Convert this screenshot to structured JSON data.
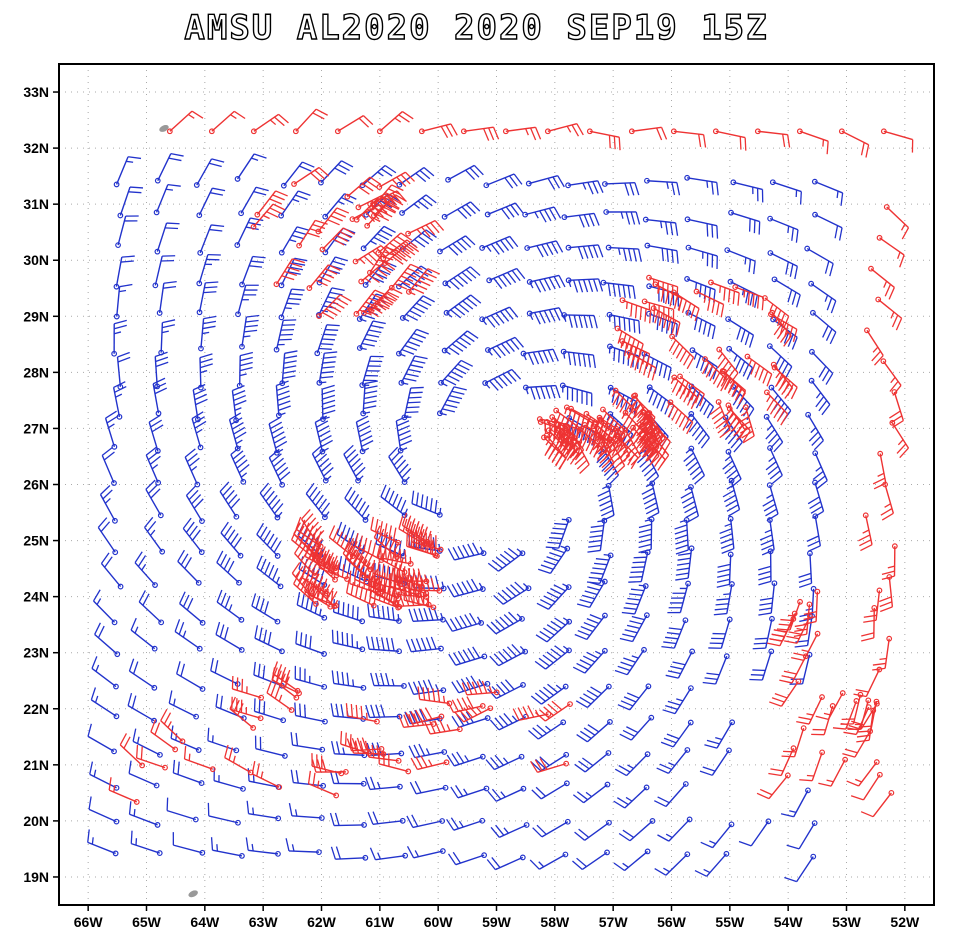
{
  "chart_data": {
    "type": "wind-barb",
    "title": "AMSU AL2020 2020 SEP19 15Z",
    "lon_range": [
      -66.5,
      -51.5
    ],
    "lat_range": [
      18.5,
      33.5
    ],
    "x_tick_labels": [
      "66W",
      "65W",
      "64W",
      "63W",
      "62W",
      "61W",
      "60W",
      "59W",
      "58W",
      "57W",
      "56W",
      "55W",
      "54W",
      "53W",
      "52W"
    ],
    "y_tick_labels": [
      "33N",
      "32N",
      "31N",
      "30N",
      "29N",
      "28N",
      "27N",
      "26N",
      "25N",
      "24N",
      "23N",
      "22N",
      "21N",
      "20N",
      "19N"
    ],
    "grid": true,
    "storm_center": {
      "lon": -59.0,
      "lat": 26.3
    },
    "series": [
      {
        "color": "#2233cc"
      },
      {
        "color": "#ee3333"
      }
    ],
    "islands": [
      {
        "lon": -64.7,
        "lat": 32.35
      },
      {
        "lon": -64.2,
        "lat": 18.7
      }
    ]
  }
}
